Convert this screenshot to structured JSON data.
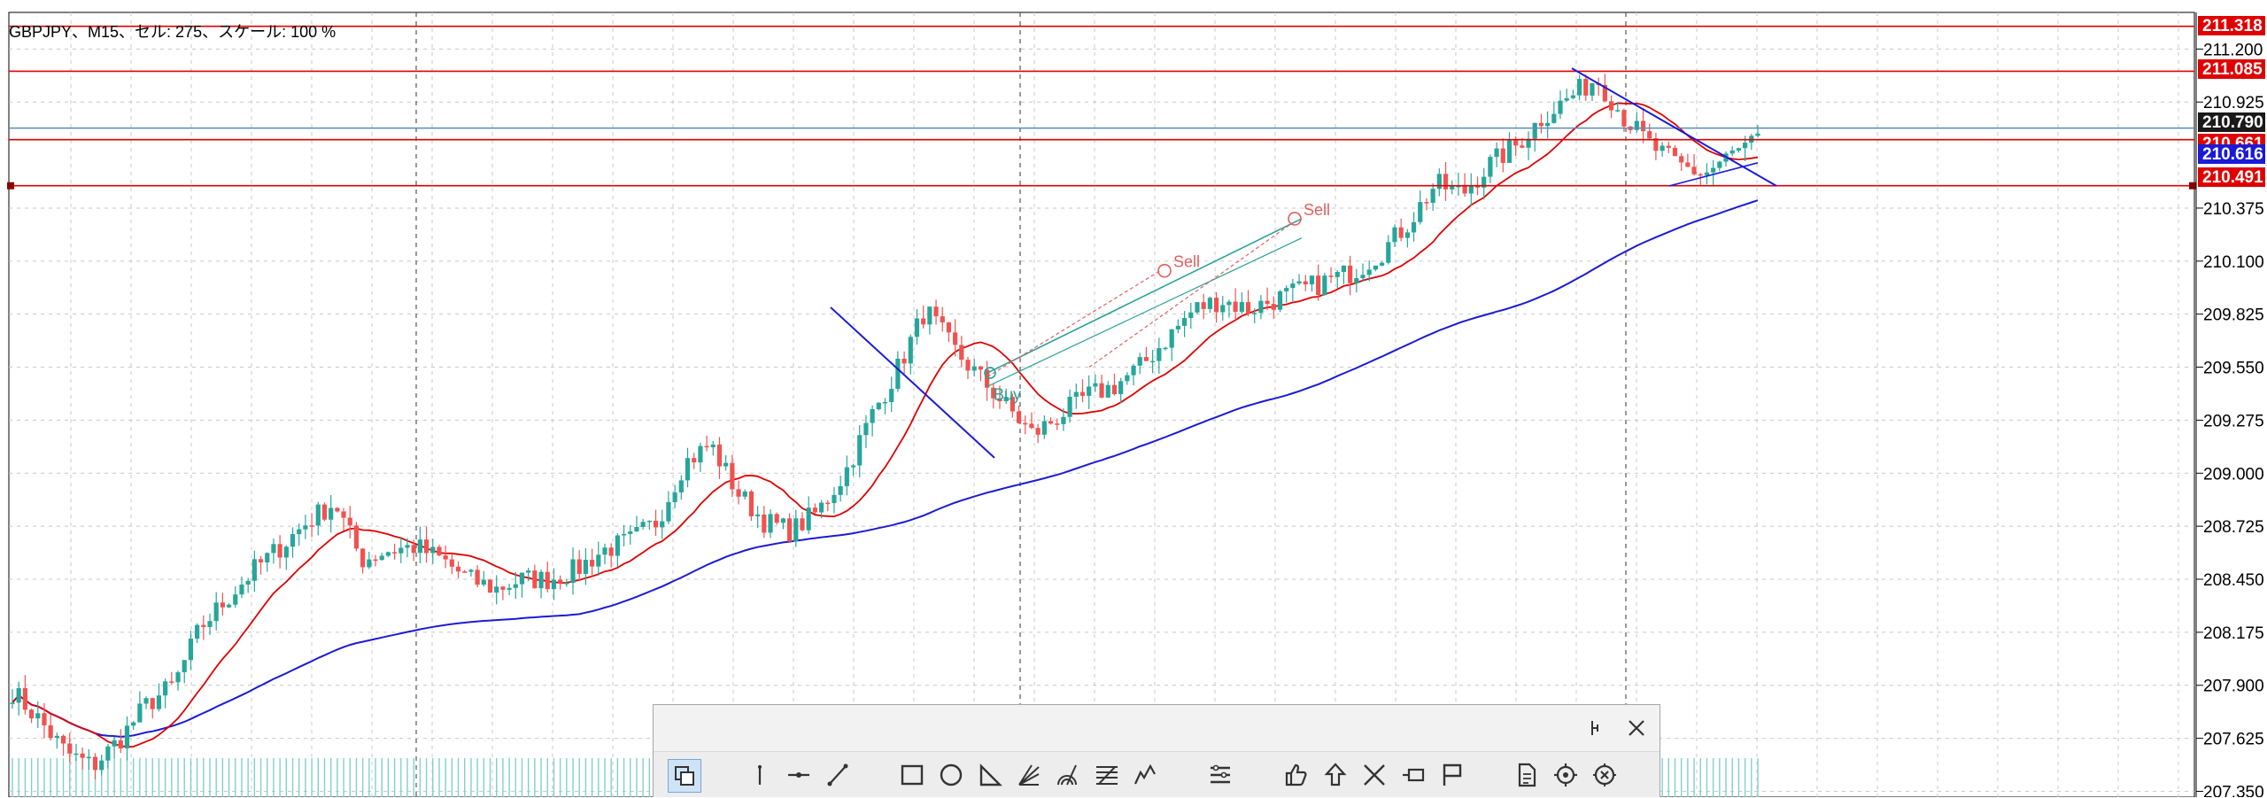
{
  "chart_info": "GBPJPY、M15、セル: 275、スケール: 100 %",
  "colors": {
    "up": "#26a69a",
    "down": "#ef5350",
    "red_line": "#e00000",
    "blue_line": "#1b1bd6",
    "grid": "#c8c8c8",
    "teal_line": "#2aa198",
    "ask_line": "#5b8bb5"
  },
  "price_axis": {
    "labels": [
      "211.200",
      "210.925",
      "210.375",
      "210.100",
      "209.825",
      "209.550",
      "209.275",
      "209.000",
      "208.725",
      "208.450",
      "208.175",
      "207.900",
      "207.625",
      "207.350"
    ],
    "max": 211.39,
    "min": 207.32
  },
  "price_tags": [
    {
      "price": "211.318",
      "value": 211.318,
      "bg": "#e00000"
    },
    {
      "price": "211.085",
      "value": 211.085,
      "bg": "#e00000"
    },
    {
      "price": "210.790",
      "value": 210.79,
      "bg": "#1a1a1a"
    },
    {
      "price": "210.661",
      "value": 210.661,
      "bg": "#e00000"
    },
    {
      "price": "210.616",
      "value": 210.616,
      "bg": "#1b1bd6"
    },
    {
      "price": "210.491",
      "value": 210.491,
      "bg": "#e00000"
    }
  ],
  "hlines": [
    {
      "price": 211.318,
      "color": "#e00000"
    },
    {
      "price": 211.085,
      "color": "#e00000"
    },
    {
      "price": 210.79,
      "color": "#5b8bb5"
    },
    {
      "price": 210.73,
      "color": "#e00000"
    },
    {
      "price": 210.491,
      "color": "#e00000"
    }
  ],
  "trade_labels": {
    "sell_1": "Sell",
    "sell_2": "Sell",
    "buy": "Buy"
  },
  "toolbar": {
    "icons": [
      "mode-select-icon",
      "vertical-line-icon",
      "horizontal-line-icon",
      "trendline-icon",
      "rectangle-icon",
      "ellipse-icon",
      "triangle-icon",
      "gann-fan-icon",
      "fibonacci-arc-icon",
      "fibonacci-retracement-icon",
      "elliott-wave-icon",
      "objects-list-icon",
      "thumbs-up-icon",
      "arrow-up-icon",
      "cross-icon",
      "label-icon",
      "flag-icon",
      "text-icon",
      "target-icon",
      "close-circle-icon"
    ]
  },
  "chart_data": {
    "type": "candlestick",
    "symbol": "GBPJPY",
    "timeframe": "M15",
    "ylim": [
      207.32,
      211.39
    ],
    "grid": true,
    "overlays": [
      "fast moving average (red)",
      "slow moving average (blue)"
    ],
    "approx_closes": [
      207.87,
      207.72,
      207.55,
      207.48,
      207.62,
      207.8,
      207.9,
      208.2,
      208.35,
      208.5,
      208.62,
      208.75,
      208.85,
      208.55,
      208.6,
      208.62,
      208.55,
      208.45,
      208.4,
      208.45,
      208.45,
      208.5,
      208.6,
      208.65,
      208.75,
      209.05,
      209.15,
      208.9,
      208.75,
      208.7,
      208.8,
      209.0,
      209.3,
      209.55,
      209.85,
      209.65,
      209.5,
      209.35,
      209.2,
      209.3,
      209.4,
      209.45,
      209.55,
      209.7,
      209.85,
      209.9,
      209.85,
      209.9,
      209.95,
      210.0,
      210.05,
      210.15,
      210.3,
      210.5,
      210.45,
      210.6,
      210.7,
      210.85,
      210.95,
      211.05,
      210.85,
      210.7,
      210.6,
      210.55,
      210.65,
      210.72
    ]
  }
}
